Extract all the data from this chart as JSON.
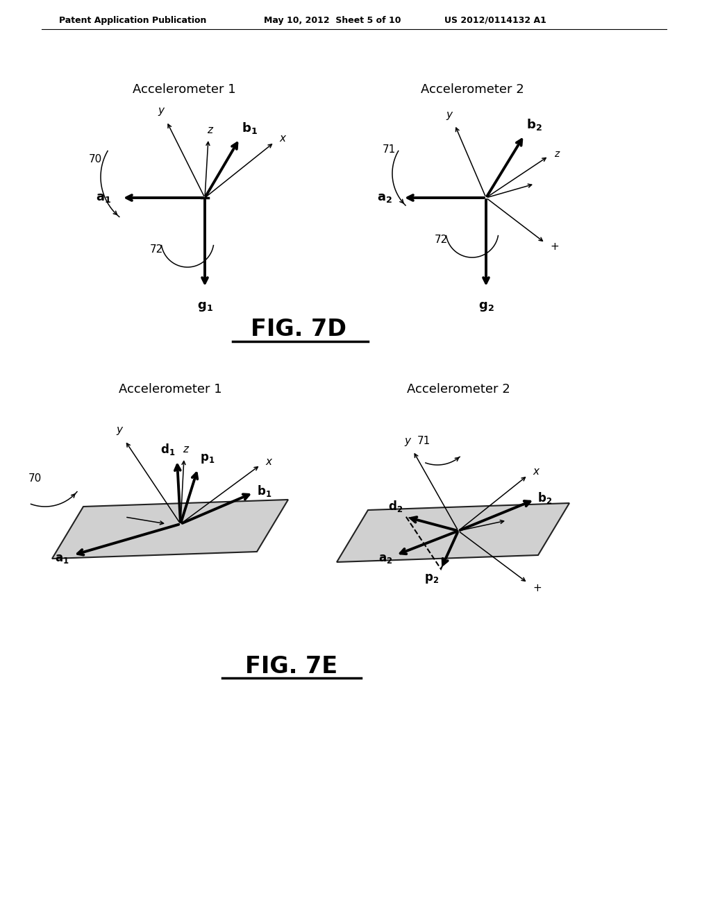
{
  "background_color": "#ffffff",
  "header_text1": "Patent Application Publication",
  "header_text2": "May 10, 2012  Sheet 5 of 10",
  "header_text3": "US 2012/0114132 A1",
  "fig7d_title": "FIG. 7D",
  "fig7e_title": "FIG. 7E",
  "accel1_title": "Accelerometer 1",
  "accel2_title": "Accelerometer 2"
}
